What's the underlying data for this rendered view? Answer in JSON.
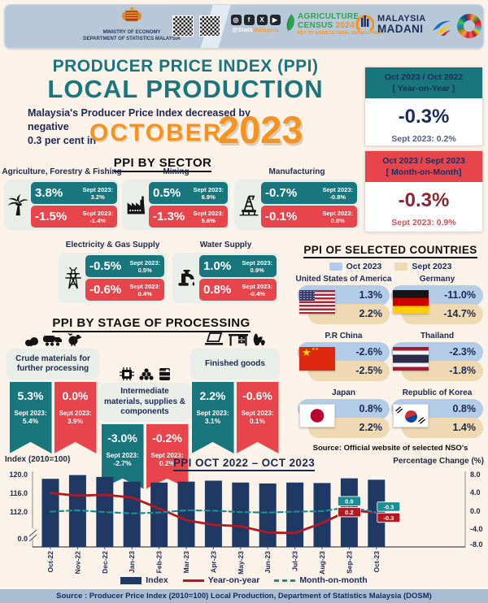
{
  "header": {
    "ministry_line1": "MINISTRY OF ECONOMY",
    "ministry_line2": "DEPARTMENT OF STATISTICS MALAYSIA",
    "social_handle_prefix": "@Stats",
    "social_handle_suffix": "Malaysia",
    "census": {
      "line1": "AGRICULTURE",
      "line2": "CENSUS",
      "year": "2024",
      "tagline": "KEY TO AGRICULTURAL DEVELOPMENT"
    },
    "madani": {
      "line1": "MALAYSIA",
      "line2": "MADANI"
    }
  },
  "title": {
    "heading_line1": "PRODUCER PRICE INDEX (PPI)",
    "heading_line2": "LOCAL PRODUCTION",
    "subtitle_line1": "Malaysia's Producer Price Index decreased by negative",
    "subtitle_line2": "0.3 per cent in",
    "month": "OCTOBER",
    "year": "2023"
  },
  "summary": {
    "yoy": {
      "period_line1": "Oct 2023 / Oct 2022",
      "period_line2": "[ Year-on-Year ]",
      "value": "-0.3%",
      "previous": "Sept 2023: 0.2%"
    },
    "mom": {
      "period_line1": "Oct 2023 / Sept 2023",
      "period_line2": "[ Month-on-Month]",
      "value": "-0.3%",
      "previous": "Sept 2023: 0.9%"
    }
  },
  "sectors": {
    "heading": "PPI BY SECTOR",
    "prev_label": "Sept 2023:",
    "items": [
      {
        "name": "Agriculture, Forestry & Fishing",
        "icon": "palm-tree-icon",
        "yoy": "3.8%",
        "yoy_prev": "3.2%",
        "mom": "-1.5%",
        "mom_prev": "-1.4%"
      },
      {
        "name": "Mining",
        "icon": "factory-icon",
        "yoy": "0.5%",
        "yoy_prev": "6.9%",
        "mom": "-1.3%",
        "mom_prev": "5.6%"
      },
      {
        "name": "Manufacturing",
        "icon": "oil-rig-icon",
        "yoy": "-0.7%",
        "yoy_prev": "-0.8%",
        "mom": "-0.1%",
        "mom_prev": "0.8%"
      },
      {
        "name": "Electricity & Gas Supply",
        "icon": "electricity-pylon-icon",
        "yoy": "-0.5%",
        "yoy_prev": "0.5%",
        "mom": "-0.6%",
        "mom_prev": "0.4%"
      },
      {
        "name": "Water Supply",
        "icon": "water-tap-icon",
        "yoy": "1.0%",
        "yoy_prev": "0.9%",
        "mom": "0.8%",
        "mom_prev": "-0.4%"
      }
    ]
  },
  "countries": {
    "heading": "PPI OF SELECTED COUNTRIES",
    "legend": [
      {
        "label": "Oct 2023",
        "color": "#b3cde8"
      },
      {
        "label": "Sept 2023",
        "color": "#eed9b2"
      }
    ],
    "items": [
      {
        "name": "United States of America",
        "flag": "us-flag-icon",
        "oct": "1.3%",
        "sept": "2.2%"
      },
      {
        "name": "Germany",
        "flag": "germany-flag-icon",
        "oct": "-11.0%",
        "sept": "-14.7%"
      },
      {
        "name": "P.R China",
        "flag": "china-flag-icon",
        "oct": "-2.6%",
        "sept": "-2.5%"
      },
      {
        "name": "Thailand",
        "flag": "thailand-flag-icon",
        "oct": "-2.3%",
        "sept": "-1.8%"
      },
      {
        "name": "Japan",
        "flag": "japan-flag-icon",
        "oct": "0.8%",
        "sept": "2.2%"
      },
      {
        "name": "Republic of Korea",
        "flag": "korea-flag-icon",
        "oct": "0.8%",
        "sept": "1.4%"
      }
    ],
    "source": "Source: Official website of selected NSO's"
  },
  "stages": {
    "heading": "PPI BY STAGE OF PROCESSING",
    "prev_label": "Sept 2023:",
    "items": [
      {
        "name": "Crude materials for further processing",
        "yoy": "5.3%",
        "yoy_prev": "5.4%",
        "mom": "0.0%",
        "mom_prev": "3.9%"
      },
      {
        "name": "Intermediate materials, supplies & components",
        "yoy": "-3.0%",
        "yoy_prev": "-2.7%",
        "mom": "-0.2%",
        "mom_prev": "0.2%"
      },
      {
        "name": "Finished goods",
        "yoy": "2.2%",
        "yoy_prev": "3.1%",
        "mom": "-0.6%",
        "mom_prev": "0.1%"
      }
    ]
  },
  "chart_data": {
    "type": "bar",
    "title": "PPI OCT 2022 – OCT 2023",
    "categories": [
      "Oct-22",
      "Nov-22",
      "Dec-22",
      "Jan-23",
      "Feb-23",
      "Mar-23",
      "Apr-23",
      "May-23",
      "Jun-23",
      "Jul-23",
      "Aug-23",
      "Sep-23",
      "Oct-23"
    ],
    "series": [
      {
        "name": "Index",
        "type": "bar",
        "axis": "left",
        "color": "#203864",
        "values": [
          119.1,
          119.9,
          119.5,
          118.5,
          118.3,
          118.5,
          118.7,
          118.3,
          118.1,
          118.3,
          118.2,
          119.2,
          118.9
        ]
      },
      {
        "name": "Year-on-year",
        "type": "line",
        "axis": "right",
        "color": "#b31923",
        "values": [
          4.0,
          3.4,
          3.6,
          3.0,
          0.6,
          -2.0,
          -3.0,
          -3.3,
          -4.7,
          -4.8,
          -2.6,
          0.2,
          -0.3
        ]
      },
      {
        "name": "Month-on-month",
        "type": "line-dashed",
        "axis": "right",
        "color": "#1b8d93",
        "values": [
          -0.1,
          0.2,
          -0.2,
          -0.5,
          -0.3,
          0.2,
          0.1,
          -0.2,
          -0.3,
          -0.1,
          0.0,
          0.9,
          -0.3
        ]
      }
    ],
    "left_axis": {
      "label": "Index (2010=100)",
      "ticks": [
        "120.0",
        "116.0",
        "112.0",
        "0.0"
      ],
      "range_note": "axis break between 0 and 112"
    },
    "right_axis": {
      "label": "Percentage Change (%)",
      "ticks": [
        "8.0",
        "4.0",
        "0.0",
        "-4.0",
        "-8.0"
      ]
    },
    "annotations": [
      {
        "category": "Sep-23",
        "series": "Month-on-month",
        "text": "0.9"
      },
      {
        "category": "Sep-23",
        "series": "Year-on-year",
        "text": "0.2"
      },
      {
        "category": "Oct-23",
        "series": "Month-on-month",
        "text": "-0.3"
      },
      {
        "category": "Oct-23",
        "series": "Year-on-year",
        "text": "-0.3"
      }
    ],
    "legend_position": "bottom",
    "grid": false
  },
  "footer": {
    "source": "Source : Producer Price Index (2010=100) Local Production, Department of Statistics Malaysia (DOSM)"
  }
}
